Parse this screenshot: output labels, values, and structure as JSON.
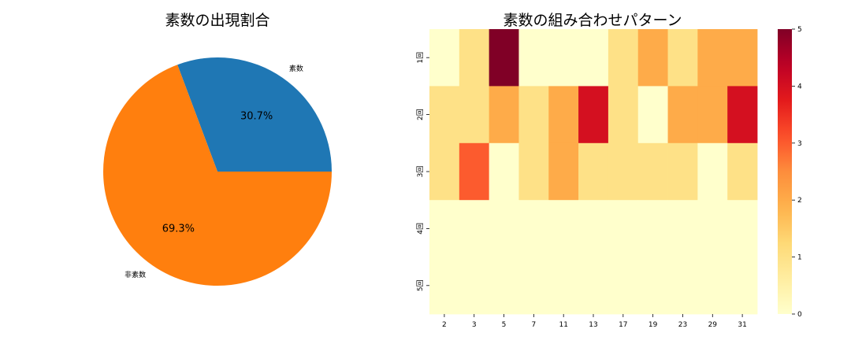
{
  "chart_data": [
    {
      "type": "pie",
      "title": "素数の出現割合",
      "labels": [
        "素数",
        "非素数"
      ],
      "values": [
        30.7,
        69.3
      ],
      "autopct": [
        "30.7%",
        "69.3%"
      ],
      "colors": [
        "#1f77b4",
        "#ff7f0e"
      ]
    },
    {
      "type": "heatmap",
      "title": "素数の組み合わせパターン",
      "columns": [
        "2",
        "3",
        "5",
        "7",
        "11",
        "13",
        "17",
        "19",
        "23",
        "29",
        "31"
      ],
      "rows": [
        "1回",
        "2回",
        "3回",
        "4回",
        "5回"
      ],
      "values": [
        [
          0,
          1,
          5,
          0,
          0,
          0,
          1,
          2,
          1,
          2,
          2
        ],
        [
          1,
          1,
          2,
          1,
          2,
          4,
          1,
          0,
          2,
          2,
          4
        ],
        [
          1,
          3,
          0,
          1,
          2,
          1,
          1,
          1,
          1,
          0,
          1
        ],
        [
          0,
          0,
          0,
          0,
          0,
          0,
          0,
          0,
          0,
          0,
          0
        ],
        [
          0,
          0,
          0,
          0,
          0,
          0,
          0,
          0,
          0,
          0,
          0
        ]
      ],
      "vmin": 0,
      "vmax": 5,
      "colormap": "YlOrRd",
      "colorbar_ticks": [
        "0",
        "1",
        "2",
        "3",
        "4",
        "5"
      ]
    }
  ]
}
